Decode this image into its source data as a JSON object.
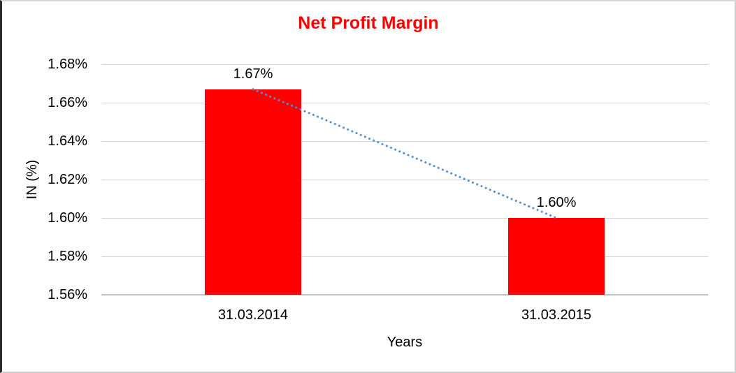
{
  "frame": {
    "background": "#FFFFFF",
    "border_left_color": "#2B2B2B",
    "border_color": "#D6D6D6"
  },
  "chart_data": {
    "type": "bar",
    "title": "Net Profit Margin",
    "title_color": "#FF0000",
    "categories": [
      "31.03.2014",
      "31.03.2015"
    ],
    "series": [
      {
        "name": "Net Profit Margin",
        "values": [
          1.667,
          1.6
        ],
        "data_labels": [
          "1.67%",
          "1.60%"
        ]
      }
    ],
    "xlabel": "Years",
    "ylabel": "IN (%)",
    "ylim": [
      1.56,
      1.68
    ],
    "yticks": [
      {
        "value": 1.68,
        "label": "1.68%"
      },
      {
        "value": 1.66,
        "label": "1.66%"
      },
      {
        "value": 1.64,
        "label": "1.64%"
      },
      {
        "value": 1.62,
        "label": "1.62%"
      },
      {
        "value": 1.6,
        "label": "1.60%"
      },
      {
        "value": 1.58,
        "label": "1.58%"
      },
      {
        "value": 1.56,
        "label": "1.56%"
      }
    ],
    "bar_color": "#FF0000",
    "gridline_color": "#D4D4D4",
    "axis_line_color": "#BFBFBF",
    "text_color": "#000000",
    "grid": true,
    "legend": "none",
    "trendline": {
      "type": "linear",
      "style": "dotted",
      "color": "#4E8FD6"
    }
  }
}
